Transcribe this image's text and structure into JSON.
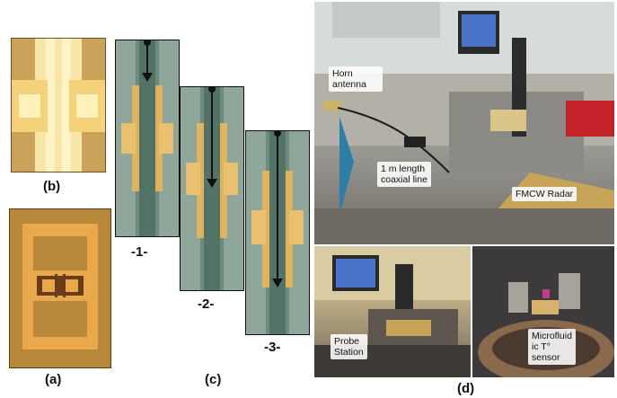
{
  "labels": {
    "a": "(a)",
    "b": "(b)",
    "c": "(c)",
    "d": "(d)",
    "step1": "-1-",
    "step2": "-2-",
    "step3": "-3-"
  },
  "callouts": {
    "horn": "Horn antenna",
    "coax_line1": "1 m length",
    "coax_line2": "coaxial line",
    "fmcw": "FMCW Radar",
    "probe_line1": "Probe",
    "probe_line2": "Station",
    "micro_line1": "Microfluid",
    "micro_line2": "ic T°",
    "micro_line3": "sensor"
  },
  "colors": {
    "gold": "#e8b45a",
    "channel": "#5f7f72",
    "arrow": "#111111"
  }
}
